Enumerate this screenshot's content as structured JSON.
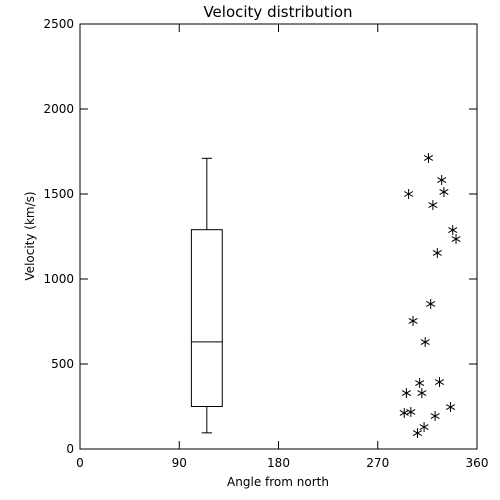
{
  "chart_data": {
    "type": "box",
    "title": "Velocity distribution",
    "x_label": "Angle from north",
    "y_label": "Velocity (km/s)",
    "xlim": [
      0,
      360
    ],
    "xticks": [
      0,
      90,
      180,
      270,
      360
    ],
    "ylim": [
      0,
      2500
    ],
    "yticks": [
      0,
      500,
      1000,
      1500,
      2000,
      2500
    ],
    "color": "#000000",
    "boxes": [
      {
        "position": 115,
        "min": 95,
        "q1": 250,
        "median": 630,
        "q3": 1290,
        "max": 1710
      }
    ],
    "points": {
      "type": "scatter",
      "x": [
        298,
        316,
        328,
        330,
        320,
        338,
        341,
        324,
        318,
        302,
        313,
        308,
        326,
        296,
        310,
        294,
        300,
        322,
        336,
        312,
        306
      ],
      "y": [
        1500,
        1712,
        1582,
        1512,
        1435,
        1288,
        1235,
        1153,
        853,
        753,
        629,
        388,
        394,
        329,
        329,
        212,
        218,
        194,
        247,
        129,
        94
      ]
    }
  }
}
